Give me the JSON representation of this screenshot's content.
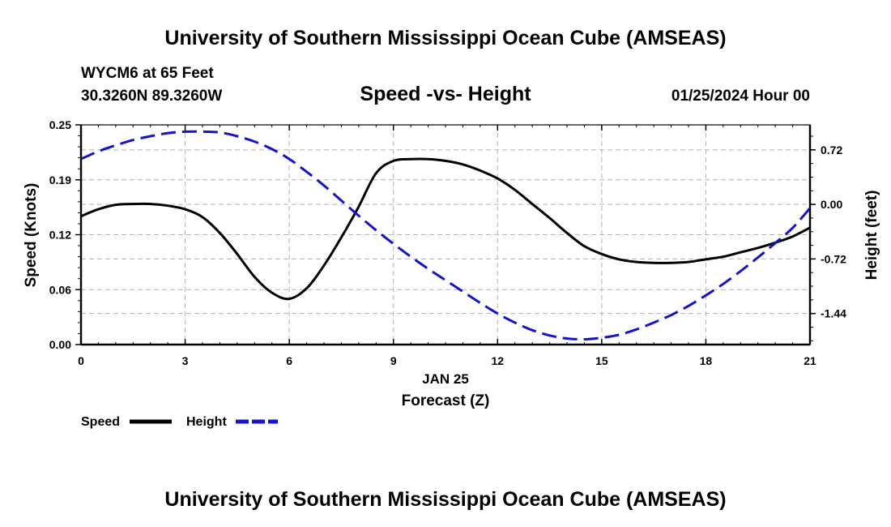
{
  "header": {
    "title": "University of Southern Mississippi Ocean Cube (AMSEAS)",
    "station": "WYCM6 at 65 Feet",
    "coords": "30.3260N  89.3260W",
    "chart_title": "Speed -vs- Height",
    "datetime": "01/25/2024 Hour 00"
  },
  "footer": {
    "title": "University of Southern Mississippi Ocean Cube (AMSEAS)"
  },
  "chart_data": {
    "type": "line",
    "title": "Speed -vs- Height",
    "xlabel": "Forecast (Z)",
    "xdate_label": "JAN 25",
    "ylabel_left": "Speed (Knots)",
    "ylabel_right": "Height (feet)",
    "xlim": [
      0,
      21
    ],
    "ylim_left": [
      0,
      0.25
    ],
    "ylim_right": [
      -1.85,
      1.05
    ],
    "x_ticks": [
      "0",
      "3",
      "6",
      "9",
      "12",
      "15",
      "18",
      "21"
    ],
    "x_tick_values": [
      0,
      3,
      6,
      9,
      12,
      15,
      18,
      21
    ],
    "y_left_ticks": [
      "0.00",
      "0.06",
      "0.12",
      "0.19",
      "0.25"
    ],
    "y_left_tick_values": [
      0.0,
      0.0625,
      0.125,
      0.1875,
      0.25
    ],
    "y_right_ticks": [
      "0.72",
      "0.00",
      "-0.72",
      "-1.44"
    ],
    "y_right_tick_values": [
      0.72,
      0.0,
      -0.72,
      -1.44
    ],
    "grid": true,
    "legend_position": "bottom-left",
    "series": [
      {
        "name": "Speed",
        "axis": "left",
        "color": "#000000",
        "dash": "solid",
        "x": [
          0,
          0.5,
          1,
          1.5,
          2,
          2.5,
          3,
          3.5,
          4,
          4.5,
          5,
          5.5,
          6,
          6.5,
          7,
          7.5,
          8,
          8.5,
          9,
          9.5,
          10,
          10.5,
          11,
          11.5,
          12,
          12.5,
          13,
          13.5,
          14,
          14.5,
          15,
          15.5,
          16,
          16.5,
          17,
          17.5,
          18,
          18.5,
          19,
          19.5,
          20,
          20.5,
          21
        ],
        "values": [
          0.146,
          0.154,
          0.159,
          0.16,
          0.16,
          0.158,
          0.154,
          0.145,
          0.127,
          0.103,
          0.077,
          0.059,
          0.052,
          0.064,
          0.09,
          0.122,
          0.157,
          0.195,
          0.209,
          0.211,
          0.211,
          0.209,
          0.205,
          0.198,
          0.189,
          0.176,
          0.16,
          0.144,
          0.127,
          0.112,
          0.103,
          0.097,
          0.094,
          0.093,
          0.093,
          0.094,
          0.097,
          0.1,
          0.105,
          0.11,
          0.116,
          0.123,
          0.133
        ]
      },
      {
        "name": "Height",
        "axis": "right",
        "color": "#1414c8",
        "dash": "dashed",
        "x": [
          0,
          0.5,
          1,
          1.5,
          2,
          2.5,
          3,
          3.5,
          4,
          4.5,
          5,
          5.5,
          6,
          6.5,
          7,
          7.5,
          8,
          8.5,
          9,
          9.5,
          10,
          10.5,
          11,
          11.5,
          12,
          12.5,
          13,
          13.5,
          14,
          14.5,
          15,
          15.5,
          16,
          16.5,
          17,
          17.5,
          18,
          18.5,
          19,
          19.5,
          20,
          20.5,
          21
        ],
        "values": [
          0.6,
          0.7,
          0.78,
          0.85,
          0.9,
          0.94,
          0.96,
          0.96,
          0.95,
          0.9,
          0.83,
          0.73,
          0.6,
          0.43,
          0.25,
          0.05,
          -0.15,
          -0.34,
          -0.52,
          -0.69,
          -0.85,
          -1.0,
          -1.15,
          -1.3,
          -1.44,
          -1.56,
          -1.66,
          -1.73,
          -1.77,
          -1.78,
          -1.76,
          -1.72,
          -1.65,
          -1.56,
          -1.46,
          -1.34,
          -1.2,
          -1.05,
          -0.88,
          -0.7,
          -0.51,
          -0.31,
          -0.05
        ]
      }
    ]
  }
}
